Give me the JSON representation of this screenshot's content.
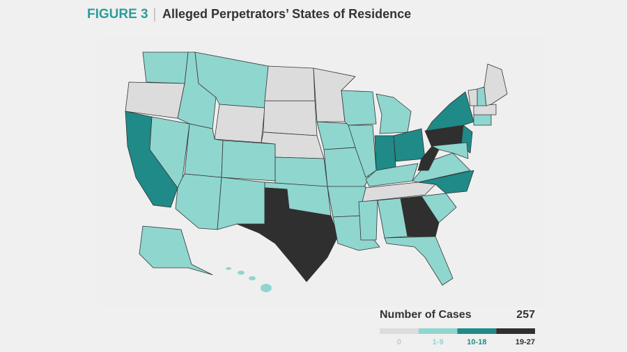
{
  "header": {
    "figure": "FIGURE 3",
    "title": "Alleged Perpetrators’ States of Residence"
  },
  "legend": {
    "title": "Number of Cases",
    "total": 257,
    "bins": [
      {
        "label": "0",
        "color": "#dcdcdc"
      },
      {
        "label": "1-9",
        "color": "#8fd6cf"
      },
      {
        "label": "10-18",
        "color": "#1f8a87"
      },
      {
        "label": "19-27",
        "color": "#2f2f2f"
      }
    ]
  },
  "regions": [
    1,
    0,
    2,
    1,
    1,
    1,
    0,
    1,
    1,
    1,
    1,
    0,
    0,
    0,
    1,
    1,
    3,
    0,
    1,
    1,
    1,
    1,
    1,
    1,
    1,
    2,
    2,
    1,
    0,
    1,
    1,
    3,
    1,
    1,
    2,
    1,
    3,
    3,
    2,
    2,
    1,
    1,
    0,
    1,
    0,
    0,
    1
  ]
}
